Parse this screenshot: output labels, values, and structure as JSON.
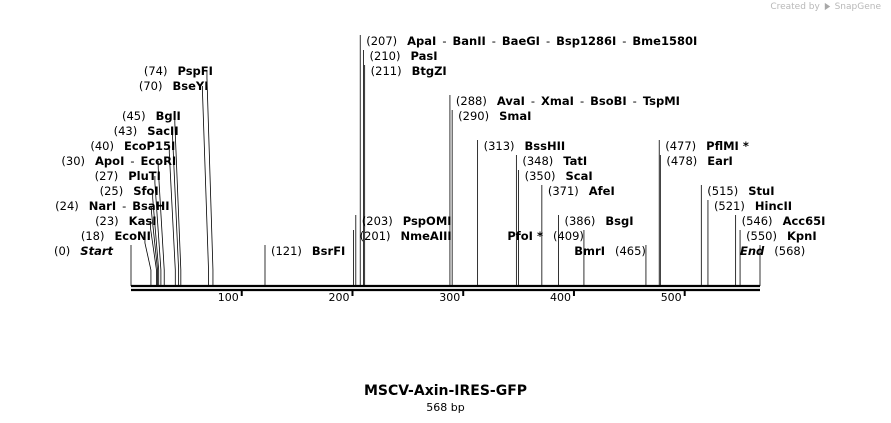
{
  "credit": {
    "text": "Created by",
    "brand": "SnapGene"
  },
  "map": {
    "name": "MSCV-Axin-IRES-GFP",
    "length_label": "568 bp",
    "scale": {
      "start": 1,
      "end": 568,
      "ticks": [
        100,
        200,
        300,
        400,
        500
      ]
    }
  },
  "sites": [
    {
      "pos": 0,
      "cut": 0,
      "row": 9,
      "names": [
        "Start"
      ],
      "terminal": true
    },
    {
      "pos": 18,
      "cut": 18,
      "row": 8,
      "names": [
        "EcoNI"
      ]
    },
    {
      "pos": 23,
      "cut": 23,
      "row": 7,
      "names": [
        "KasI"
      ]
    },
    {
      "pos": 24,
      "cut": 24,
      "row": 6,
      "names": [
        "NarI",
        "BsaHI"
      ]
    },
    {
      "pos": 25,
      "cut": 25,
      "row": 5,
      "names": [
        "SfoI"
      ]
    },
    {
      "pos": 27,
      "cut": 27,
      "row": 4,
      "names": [
        "PluTI"
      ]
    },
    {
      "pos": 30,
      "cut": 30,
      "row": 3,
      "names": [
        "ApoI",
        "EcoRI"
      ]
    },
    {
      "pos": 40,
      "cut": 40,
      "row": 2,
      "names": [
        "EcoP15I"
      ]
    },
    {
      "pos": 43,
      "cut": 43,
      "row": 1,
      "names": [
        "SacII"
      ]
    },
    {
      "pos": 45,
      "cut": 45,
      "row": 0,
      "names": [
        "BglI"
      ]
    },
    {
      "pos": 70,
      "cut": 70,
      "row": -2,
      "names": [
        "BseYI"
      ]
    },
    {
      "pos": 74,
      "cut": 74,
      "row": -3,
      "names": [
        "PspFI"
      ]
    },
    {
      "pos": 121,
      "cut": 121,
      "row": 9,
      "names": [
        "BsrFI"
      ]
    },
    {
      "pos": 201,
      "cut": 201,
      "row": 8,
      "names": [
        "NmeAIII"
      ]
    },
    {
      "pos": 203,
      "cut": 203,
      "row": 7,
      "names": [
        "PspOMI"
      ]
    },
    {
      "pos": 207,
      "cut": 207,
      "row": -5,
      "names": [
        "ApaI",
        "BanII",
        "BaeGI",
        "Bsp1286I",
        "Bme1580I"
      ]
    },
    {
      "pos": 210,
      "cut": 210,
      "row": -4,
      "names": [
        "PasI"
      ]
    },
    {
      "pos": 211,
      "cut": 211,
      "row": -3,
      "names": [
        "BtgZI"
      ]
    },
    {
      "pos": 288,
      "cut": 288,
      "row": -1,
      "names": [
        "AvaI",
        "XmaI",
        "BsoBI",
        "TspMI"
      ]
    },
    {
      "pos": 290,
      "cut": 290,
      "row": 0,
      "names": [
        "SmaI"
      ]
    },
    {
      "pos": 313,
      "cut": 313,
      "row": 2,
      "names": [
        "BssHII"
      ]
    },
    {
      "pos": 348,
      "cut": 348,
      "row": 3,
      "names": [
        "TatI"
      ]
    },
    {
      "pos": 350,
      "cut": 350,
      "row": 4,
      "names": [
        "ScaI"
      ]
    },
    {
      "pos": 371,
      "cut": 371,
      "row": 5,
      "names": [
        "AfeI"
      ]
    },
    {
      "pos": 386,
      "cut": 386,
      "row": 7,
      "names": [
        "BsgI"
      ]
    },
    {
      "pos": 409,
      "cut": 409,
      "row": 8,
      "names": [
        "PfoI *"
      ],
      "label_first": true
    },
    {
      "pos": 465,
      "cut": 465,
      "row": 9,
      "names": [
        "BmrI"
      ],
      "label_first": true
    },
    {
      "pos": 477,
      "cut": 477,
      "row": 2,
      "names": [
        "PflMI *"
      ]
    },
    {
      "pos": 478,
      "cut": 478,
      "row": 3,
      "names": [
        "EarI"
      ]
    },
    {
      "pos": 515,
      "cut": 515,
      "row": 5,
      "names": [
        "StuI"
      ]
    },
    {
      "pos": 521,
      "cut": 521,
      "row": 6,
      "names": [
        "HincII"
      ]
    },
    {
      "pos": 546,
      "cut": 546,
      "row": 7,
      "names": [
        "Acc65I"
      ]
    },
    {
      "pos": 550,
      "cut": 550,
      "row": 8,
      "names": [
        "KpnI"
      ]
    },
    {
      "pos": 568,
      "cut": 568,
      "row": 9,
      "names": [
        "End"
      ],
      "terminal": true,
      "label_first": true
    }
  ]
}
